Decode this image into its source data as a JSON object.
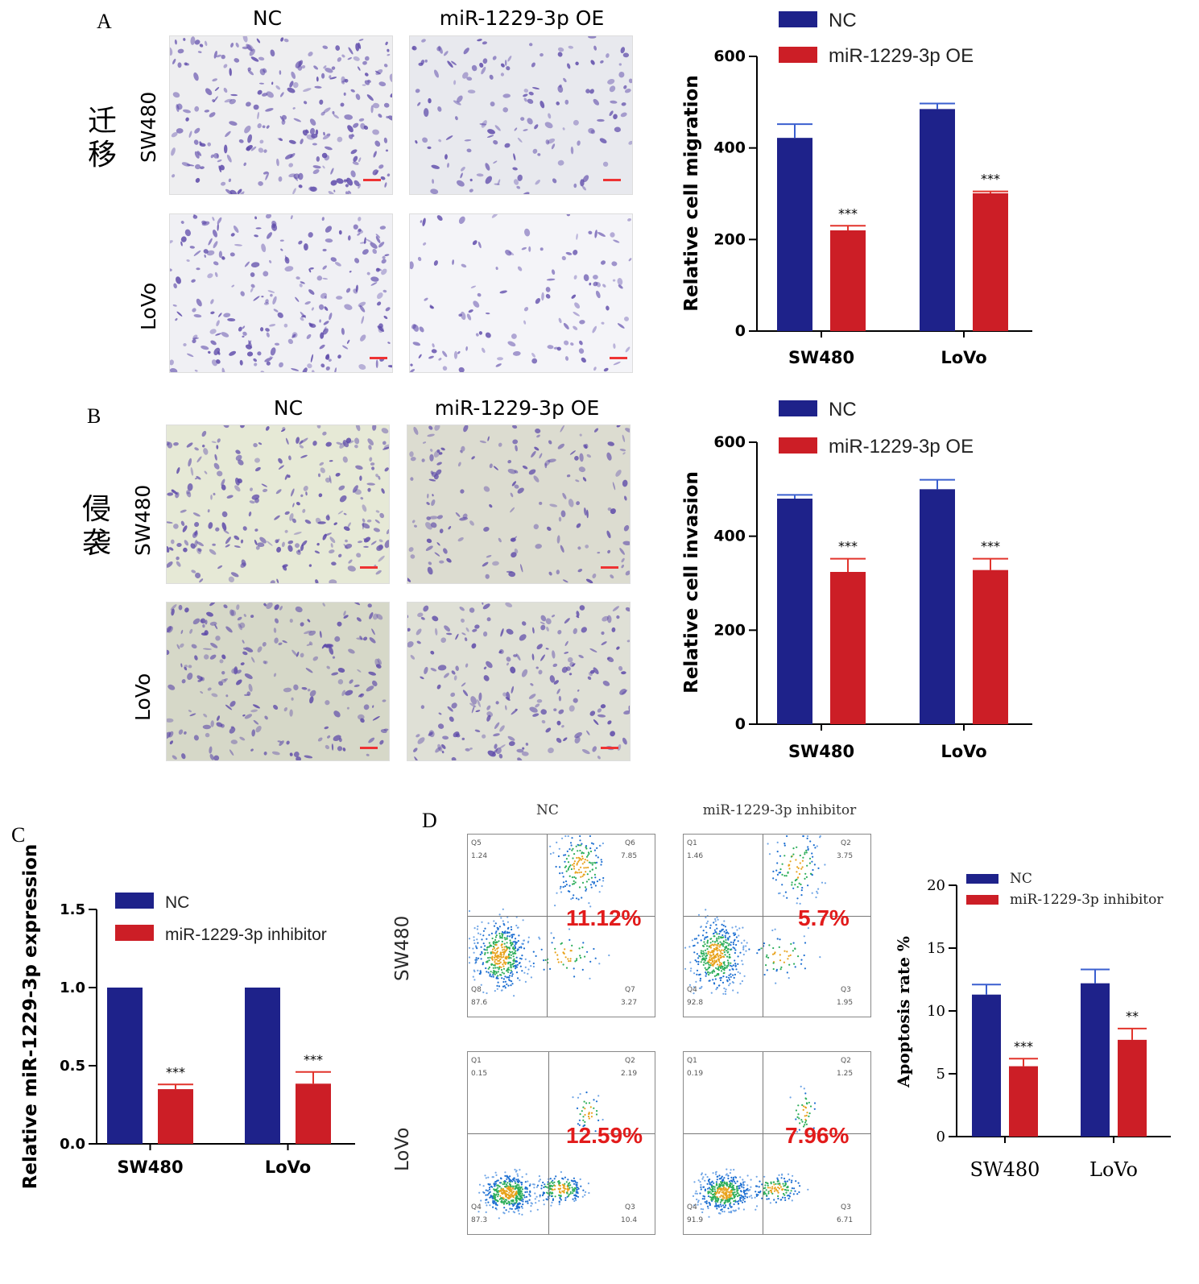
{
  "panels": {
    "A": {
      "label": "A",
      "col_nc": "NC",
      "col_oe": "miR-1229-3p OE",
      "row1": "SW480",
      "row2": "LoVo",
      "side": "迁移"
    },
    "B": {
      "label": "B",
      "col_nc": "NC",
      "col_oe": "miR-1229-3p OE",
      "row1": "SW480",
      "row2": "LoVo",
      "side": "侵袭"
    },
    "C": {
      "label": "C"
    },
    "D": {
      "label": "D",
      "col_nc": "NC",
      "col_inh": "miR-1229-3p inhibitor",
      "row1": "SW480",
      "row2": "LoVo",
      "flows": [
        {
          "q_tl": "Q5",
          "v_tl": "1.24",
          "q_tr": "Q6",
          "v_tr": "7.85",
          "q_bl": "Q8",
          "v_bl": "87.6",
          "q_br": "Q7",
          "v_br": "3.27",
          "pct": "11.12%"
        },
        {
          "q_tl": "Q1",
          "v_tl": "1.46",
          "q_tr": "Q2",
          "v_tr": "3.75",
          "q_bl": "Q4",
          "v_bl": "92.8",
          "q_br": "Q3",
          "v_br": "1.95",
          "pct": "5.7%"
        },
        {
          "q_tl": "Q1",
          "v_tl": "0.15",
          "q_tr": "Q2",
          "v_tr": "2.19",
          "q_bl": "Q4",
          "v_bl": "87.3",
          "q_br": "Q3",
          "v_br": "10.4",
          "pct": "12.59%"
        },
        {
          "q_tl": "Q1",
          "v_tl": "0.19",
          "q_tr": "Q2",
          "v_tr": "1.25",
          "q_bl": "Q4",
          "v_bl": "91.9",
          "q_br": "Q3",
          "v_br": "6.71",
          "pct": "7.96%"
        }
      ]
    }
  },
  "colors": {
    "nc": "#1e228a",
    "oe": "#cc1e26",
    "err_nc": "#3a5fcf",
    "err_oe": "#e2342c",
    "stain": "#5a46a8"
  },
  "chart_data": [
    {
      "id": "A",
      "type": "bar",
      "categories": [
        "SW480",
        "LoVo"
      ],
      "series": [
        {
          "name": "NC",
          "values": [
            422,
            485
          ],
          "errors": [
            30,
            12
          ]
        },
        {
          "name": "miR-1229-3p OE",
          "values": [
            220,
            301
          ],
          "errors": [
            10,
            4
          ]
        }
      ],
      "significance": [
        "***",
        "***"
      ],
      "ylabel": "Relative cell migration",
      "ylim": [
        0,
        600
      ],
      "yticks": [
        "0",
        "200",
        "400",
        "600"
      ],
      "legend": "top-right"
    },
    {
      "id": "B",
      "type": "bar",
      "categories": [
        "SW480",
        "LoVo"
      ],
      "series": [
        {
          "name": "NC",
          "values": [
            480,
            500
          ],
          "errors": [
            8,
            20
          ]
        },
        {
          "name": "miR-1229-3p OE",
          "values": [
            324,
            328
          ],
          "errors": [
            28,
            24
          ]
        }
      ],
      "significance": [
        "***",
        "***"
      ],
      "ylabel": "Relative cell invasion",
      "ylim": [
        0,
        600
      ],
      "yticks": [
        "0",
        "200",
        "400",
        "600"
      ],
      "legend": "top-right"
    },
    {
      "id": "C",
      "type": "bar",
      "categories": [
        "SW480",
        "LoVo"
      ],
      "series": [
        {
          "name": "NC",
          "values": [
            1.0,
            1.0
          ],
          "errors": [
            0,
            0
          ]
        },
        {
          "name": "miR-1229-3p inhibitor",
          "values": [
            0.35,
            0.385
          ],
          "errors": [
            0.03,
            0.075
          ]
        }
      ],
      "significance": [
        "***",
        "***"
      ],
      "ylabel": "Relative miR-1229-3p expression",
      "ylim": [
        0,
        1.5
      ],
      "yticks": [
        "0.0",
        "0.5",
        "1.0",
        "1.5"
      ],
      "legend": "top-right"
    },
    {
      "id": "D",
      "type": "bar",
      "categories": [
        "SW480",
        "LoVo"
      ],
      "series": [
        {
          "name": "NC",
          "values": [
            11.3,
            12.2
          ],
          "errors": [
            0.8,
            1.1
          ]
        },
        {
          "name": "miR-1229-3p inhibitor",
          "values": [
            5.6,
            7.7
          ],
          "errors": [
            0.6,
            0.9
          ]
        }
      ],
      "significance": [
        "***",
        "**"
      ],
      "ylabel": "Apoptosis rate %",
      "ylim": [
        0,
        20
      ],
      "yticks": [
        "0",
        "5",
        "10",
        "15",
        "20"
      ],
      "legend": "top-right"
    }
  ]
}
